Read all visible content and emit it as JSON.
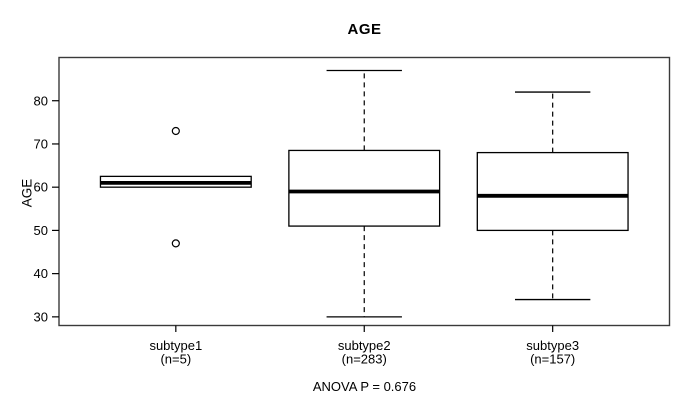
{
  "chart_data": {
    "type": "boxplot",
    "title": "AGE",
    "ylabel": "AGE",
    "xlabel": "",
    "annotation": "ANOVA P = 0.676",
    "ylim": [
      28,
      90
    ],
    "yticks": [
      30,
      40,
      50,
      60,
      70,
      80
    ],
    "grid": false,
    "legend": null,
    "groups": [
      {
        "label": "subtype1",
        "sublabel": "(n=5)",
        "n": 5,
        "position": 1,
        "whisker_low": 60,
        "q1": 60,
        "median": 61,
        "q3": 62.5,
        "whisker_high": 62.5,
        "outliers": [
          73,
          47
        ]
      },
      {
        "label": "subtype2",
        "sublabel": "(n=283)",
        "n": 283,
        "position": 2,
        "whisker_low": 30,
        "q1": 51,
        "median": 59,
        "q3": 68.5,
        "whisker_high": 87,
        "outliers": []
      },
      {
        "label": "subtype3",
        "sublabel": "(n=157)",
        "n": 157,
        "position": 3,
        "whisker_low": 34,
        "q1": 50,
        "median": 58,
        "q3": 68,
        "whisker_high": 82,
        "outliers": []
      }
    ],
    "colors": {
      "box_fill": "#ffffff",
      "line": "#000000",
      "frame": "#3a3a3a",
      "background": "#ffffff"
    }
  }
}
